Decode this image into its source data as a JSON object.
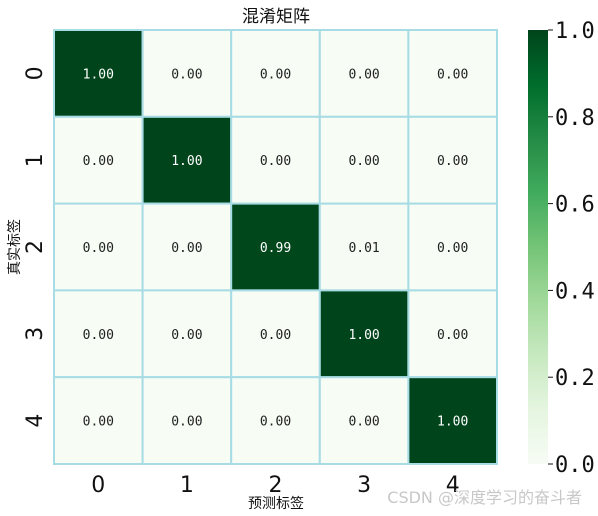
{
  "chart_data": {
    "type": "heatmap",
    "title": "混淆矩阵",
    "xlabel": "预测标签",
    "ylabel": "真实标签",
    "x_categories": [
      "0",
      "1",
      "2",
      "3",
      "4"
    ],
    "y_categories": [
      "0",
      "1",
      "2",
      "3",
      "4"
    ],
    "values": [
      [
        1.0,
        0.0,
        0.0,
        0.0,
        0.0
      ],
      [
        0.0,
        1.0,
        0.0,
        0.0,
        0.0
      ],
      [
        0.0,
        0.0,
        0.99,
        0.01,
        0.0
      ],
      [
        0.0,
        0.0,
        0.0,
        1.0,
        0.0
      ],
      [
        0.0,
        0.0,
        0.0,
        0.0,
        1.0
      ]
    ],
    "value_format": "0.00",
    "colormap": "Greens",
    "colorscale": [
      "#f7fcf5",
      "#e5f5e0",
      "#c7e9c0",
      "#a1d99b",
      "#74c476",
      "#41ab5d",
      "#238b45",
      "#006d2c",
      "#00441b"
    ],
    "cell_border_color": "#a8dce4",
    "colorbar": {
      "range": [
        0.0,
        1.0
      ],
      "ticks": [
        "0.0",
        "0.2",
        "0.4",
        "0.6",
        "0.8",
        "1.0"
      ]
    }
  },
  "watermark": "CSDN @深度学习的奋斗者"
}
